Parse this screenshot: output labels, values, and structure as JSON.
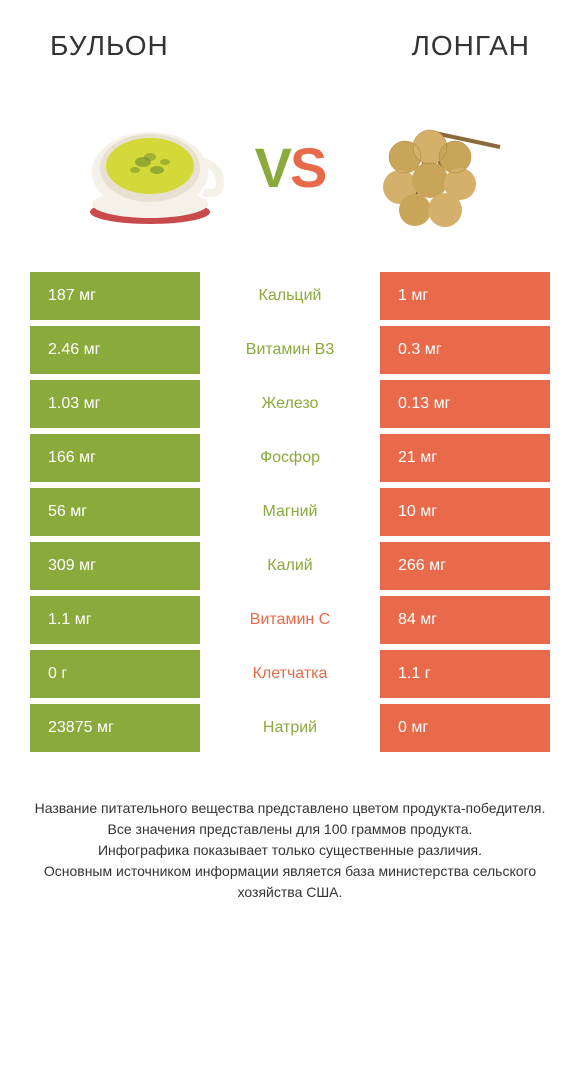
{
  "colors": {
    "left": "#8aaa3b",
    "right": "#e96a4a",
    "text_dark": "#333333"
  },
  "header": {
    "left_title": "БУЛЬОН",
    "right_title": "ЛОНГАН"
  },
  "vs": {
    "v": "V",
    "s": "S"
  },
  "rows": [
    {
      "left": "187 мг",
      "label": "Кальций",
      "right": "1 мг",
      "winner": "left"
    },
    {
      "left": "2.46 мг",
      "label": "Витамин B3",
      "right": "0.3 мг",
      "winner": "left"
    },
    {
      "left": "1.03 мг",
      "label": "Железо",
      "right": "0.13 мг",
      "winner": "left"
    },
    {
      "left": "166 мг",
      "label": "Фосфор",
      "right": "21 мг",
      "winner": "left"
    },
    {
      "left": "56 мг",
      "label": "Магний",
      "right": "10 мг",
      "winner": "left"
    },
    {
      "left": "309 мг",
      "label": "Калий",
      "right": "266 мг",
      "winner": "left"
    },
    {
      "left": "1.1 мг",
      "label": "Витамин C",
      "right": "84 мг",
      "winner": "right"
    },
    {
      "left": "0 г",
      "label": "Клетчатка",
      "right": "1.1 г",
      "winner": "right"
    },
    {
      "left": "23875 мг",
      "label": "Натрий",
      "right": "0 мг",
      "winner": "left"
    }
  ],
  "footer": {
    "line1": "Название питательного вещества представлено цветом продукта-победителя.",
    "line2": "Все значения представлены для 100 граммов продукта.",
    "line3": "Инфографика показывает только существенные различия.",
    "line4": "Основным источником информации является база министерства сельского хозяйства США."
  }
}
